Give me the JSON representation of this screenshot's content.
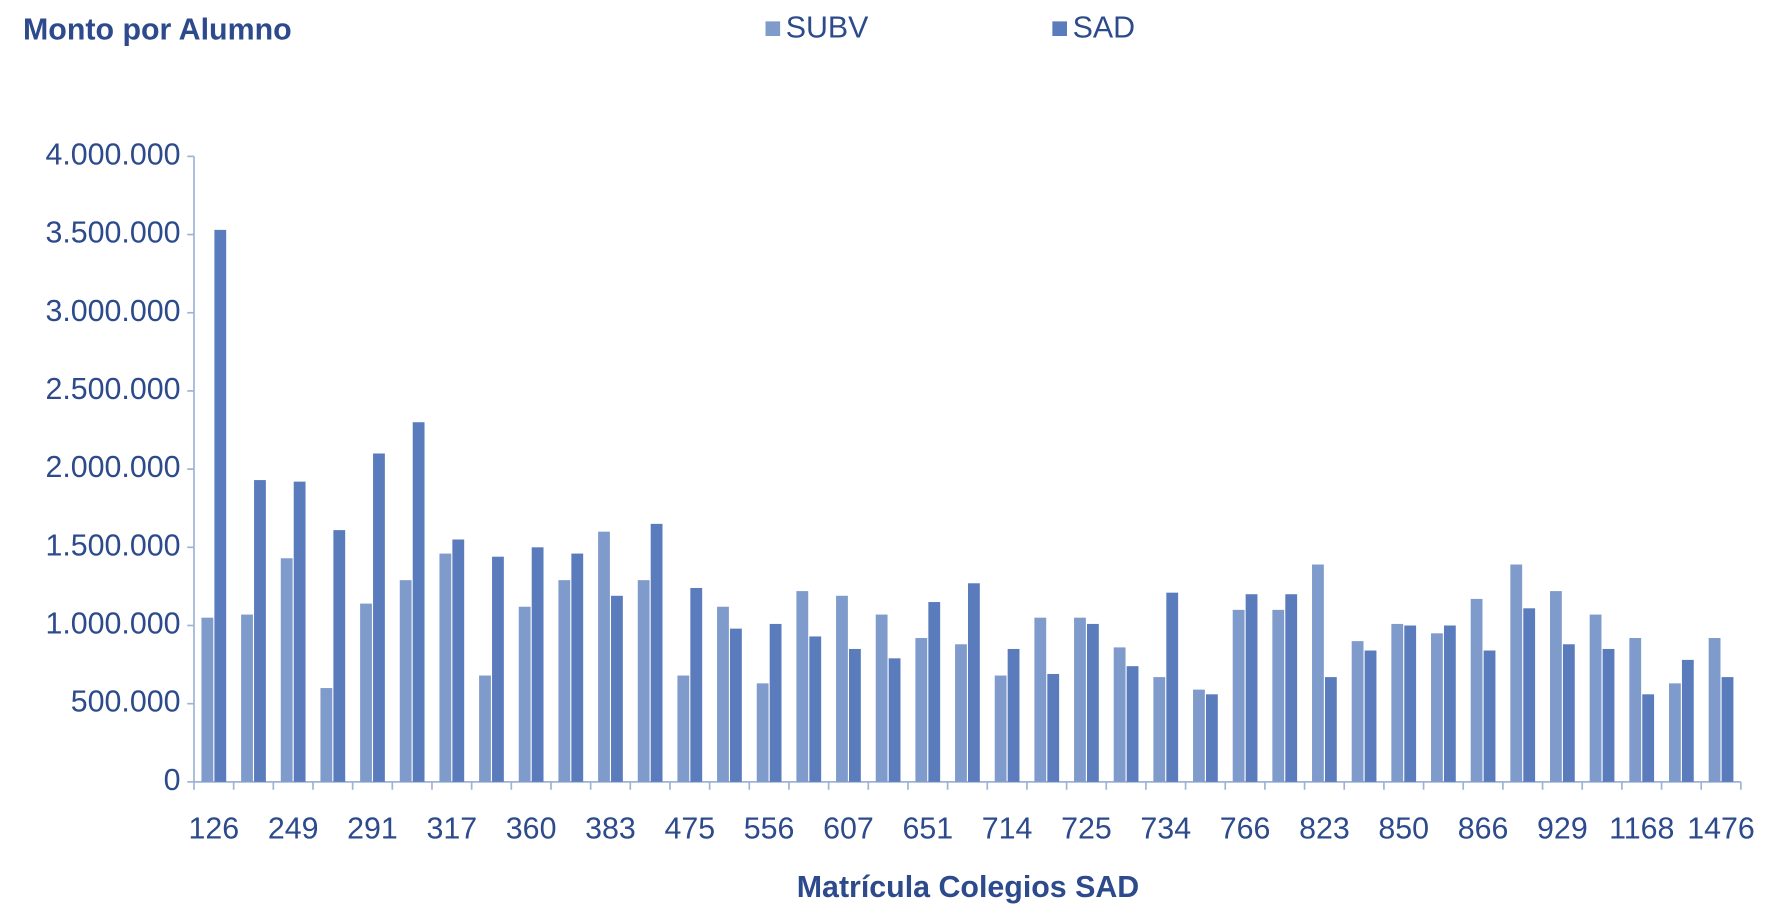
{
  "chart_data": {
    "type": "bar",
    "title": "Monto por Alumno",
    "x_label": "Matrícula Colegios SAD",
    "categories": [
      "126",
      null,
      "249",
      null,
      "291",
      null,
      "317",
      null,
      "360",
      null,
      "383",
      null,
      "475",
      null,
      "556",
      null,
      "607",
      null,
      "651",
      null,
      "714",
      null,
      "725",
      null,
      "734",
      null,
      "766",
      null,
      "823",
      null,
      "850",
      null,
      "866",
      null,
      "929",
      null,
      "1168",
      null,
      "1476"
    ],
    "series": [
      {
        "name": "SUBV",
        "color": "#7f9bcc",
        "values": [
          1050000,
          1070000,
          1430000,
          600000,
          1140000,
          1290000,
          1460000,
          680000,
          1120000,
          1290000,
          1600000,
          1290000,
          680000,
          1120000,
          630000,
          1220000,
          1190000,
          1070000,
          920000,
          880000,
          680000,
          1050000,
          1050000,
          860000,
          670000,
          590000,
          1100000,
          1100000,
          1390000,
          900000,
          1010000,
          950000,
          1170000,
          1390000,
          1220000,
          1070000,
          920000,
          630000,
          920000
        ]
      },
      {
        "name": "SAD",
        "color": "#5a7cbd",
        "values": [
          3530000,
          1930000,
          1920000,
          1610000,
          2100000,
          2300000,
          1550000,
          1440000,
          1500000,
          1460000,
          1190000,
          1650000,
          1240000,
          980000,
          1010000,
          930000,
          850000,
          790000,
          1150000,
          1270000,
          850000,
          690000,
          1010000,
          740000,
          1210000,
          560000,
          1200000,
          1200000,
          670000,
          840000,
          1000000,
          1000000,
          840000,
          1110000,
          880000,
          850000,
          560000,
          780000,
          670000
        ]
      }
    ],
    "ylim": [
      0,
      4000000
    ],
    "yticks": [
      0,
      {
        "value": 500000,
        "label": "500.000"
      },
      {
        "value": 1000000,
        "label": "1.000.000"
      },
      {
        "value": 1500000,
        "label": "1.500.000"
      },
      {
        "value": 2000000,
        "label": "2.000.000"
      },
      {
        "value": 2500000,
        "label": "2.500.000"
      },
      {
        "value": 3000000,
        "label": "3.000.000"
      },
      {
        "value": 3500000,
        "label": "3.500.000"
      },
      {
        "value": 4000000,
        "label": "4.000.000"
      }
    ],
    "legend": "top"
  }
}
